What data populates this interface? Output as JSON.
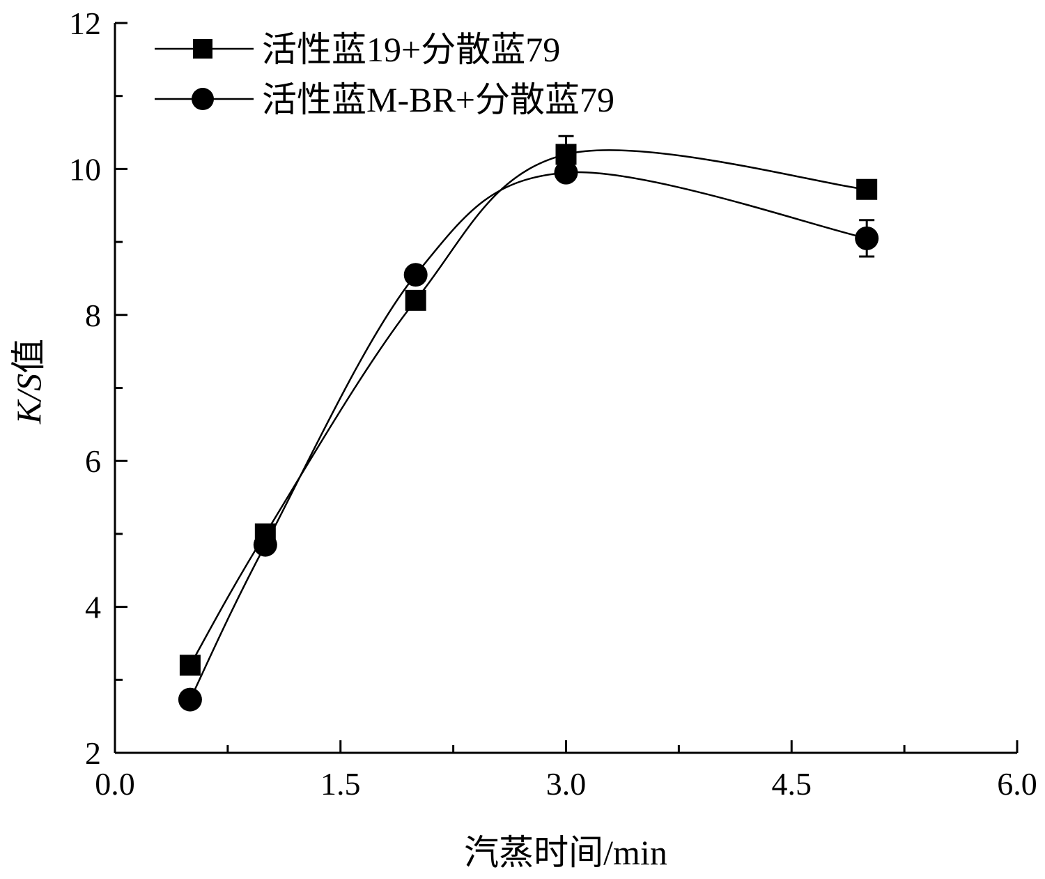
{
  "chart_data": {
    "type": "scatter",
    "title": "",
    "xlabel": "汽蒸时间/min",
    "ylabel_italic": "K/S",
    "ylabel_suffix": "值",
    "xlim": [
      0.0,
      6.0
    ],
    "ylim": [
      2,
      12
    ],
    "x_ticks": [
      "0.0",
      "1.5",
      "3.0",
      "4.5",
      "6.0"
    ],
    "y_ticks": [
      "2",
      "4",
      "6",
      "8",
      "10",
      "12"
    ],
    "x_tick_values": [
      0.0,
      1.5,
      3.0,
      4.5,
      6.0
    ],
    "y_tick_values": [
      2,
      4,
      6,
      8,
      10,
      12
    ],
    "grid": false,
    "legend_position": "top-left",
    "series": [
      {
        "name": "活性蓝19+分散蓝79",
        "marker": "square",
        "x": [
          0.5,
          1,
          2,
          3,
          5
        ],
        "y": [
          3.2,
          5.0,
          8.2,
          10.2,
          9.72
        ],
        "err": [
          0.05,
          0.05,
          0.08,
          0.25,
          0.08
        ]
      },
      {
        "name": "活性蓝M-BR+分散蓝79",
        "marker": "circle",
        "x": [
          0.5,
          1,
          2,
          3,
          5
        ],
        "y": [
          2.73,
          4.85,
          8.55,
          9.95,
          9.05
        ],
        "err": [
          0.05,
          0.05,
          0.06,
          0.08,
          0.25
        ]
      }
    ]
  }
}
